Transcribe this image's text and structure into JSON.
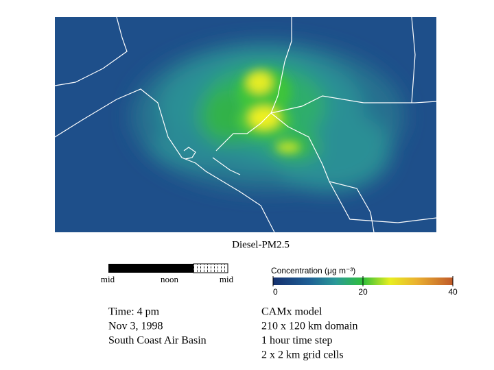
{
  "map": {
    "title": "Diesel-PM2.5"
  },
  "time_bar": {
    "labels": [
      "mid",
      "noon",
      "mid"
    ]
  },
  "colorbar": {
    "title": "Concentration (μg m⁻³)",
    "range": [
      0,
      40
    ],
    "ticks": [
      0,
      20,
      40
    ]
  },
  "info_left": [
    "Time: 4 pm",
    "Nov 3, 1998",
    "South Coast Air Basin"
  ],
  "info_right": [
    "CAMx model",
    "210 x 120 km domain",
    "1 hour time step",
    "2 x 2 km grid cells"
  ]
}
